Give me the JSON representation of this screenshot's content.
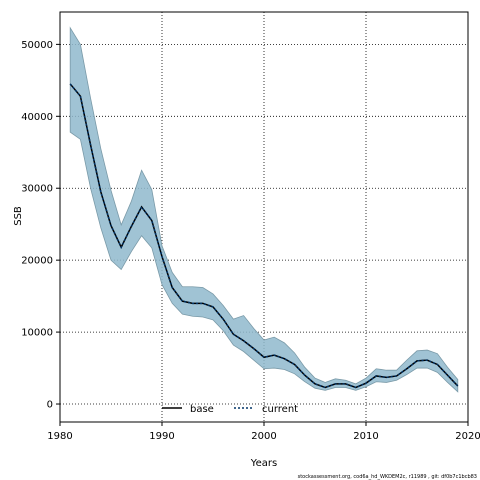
{
  "chart_data": {
    "type": "line",
    "xlabel": "Years",
    "ylabel": "SSB",
    "xlim": [
      1980,
      2020
    ],
    "ylim": [
      -2500,
      54500
    ],
    "x_ticks": [
      1980,
      1990,
      2000,
      2010,
      2020
    ],
    "y_ticks": [
      0,
      10000,
      20000,
      30000,
      40000,
      50000
    ],
    "grid": true,
    "legend_placement": "bottom-center",
    "x": [
      1981,
      1982,
      1983,
      1984,
      1985,
      1986,
      1987,
      1988,
      1989,
      1990,
      1991,
      1992,
      1993,
      1994,
      1995,
      1996,
      1997,
      1998,
      1999,
      2000,
      2001,
      2002,
      2003,
      2004,
      2005,
      2006,
      2007,
      2008,
      2009,
      2010,
      2011,
      2012,
      2013,
      2014,
      2015,
      2016,
      2017,
      2018,
      2019
    ],
    "series": [
      {
        "name": "base",
        "style": "solid",
        "color": "#000000",
        "values": [
          44500,
          42800,
          36000,
          29500,
          24800,
          21800,
          24700,
          27400,
          25500,
          20500,
          16200,
          14300,
          14000,
          14000,
          13500,
          11800,
          9700,
          8800,
          7700,
          6500,
          6800,
          6300,
          5500,
          4000,
          2800,
          2300,
          2800,
          2800,
          2300,
          2900,
          3900,
          3700,
          3900,
          4900,
          6000,
          6100,
          5500,
          4000,
          2500
        ]
      },
      {
        "name": "current",
        "style": "dotted",
        "color": "#003366",
        "values": [
          44500,
          42800,
          36000,
          29500,
          24800,
          21800,
          24700,
          27400,
          25500,
          20500,
          16200,
          14300,
          14000,
          14000,
          13500,
          11800,
          9700,
          8800,
          7700,
          6500,
          6800,
          6300,
          5500,
          4000,
          2800,
          2300,
          2800,
          2800,
          2300,
          2900,
          3900,
          3700,
          3900,
          4900,
          6000,
          6100,
          5500,
          4000,
          2500
        ]
      }
    ],
    "confidence_band": {
      "color": "#8fb8cc",
      "lower": [
        37800,
        36800,
        30000,
        24500,
        20000,
        18700,
        21200,
        23400,
        21700,
        16600,
        14000,
        12500,
        12200,
        12100,
        11700,
        10200,
        8200,
        7300,
        6100,
        4900,
        5000,
        4800,
        4200,
        3100,
        2200,
        1900,
        2300,
        2300,
        1900,
        2400,
        3100,
        3000,
        3300,
        4100,
        5000,
        5000,
        4400,
        3000,
        1700
      ],
      "upper": [
        52300,
        50000,
        42500,
        35500,
        29700,
        24900,
        28200,
        32500,
        29800,
        22000,
        18300,
        16300,
        16300,
        16200,
        15300,
        13700,
        11800,
        12300,
        10500,
        8900,
        9300,
        8500,
        7100,
        5100,
        3600,
        3000,
        3500,
        3300,
        2800,
        3600,
        4900,
        4700,
        4700,
        6100,
        7400,
        7500,
        7000,
        5100,
        3400
      ]
    }
  },
  "footnote": "stockassessment.org, cod6a_hd_WKDEM2c, r11989 , git: df0b7c1bcb83"
}
